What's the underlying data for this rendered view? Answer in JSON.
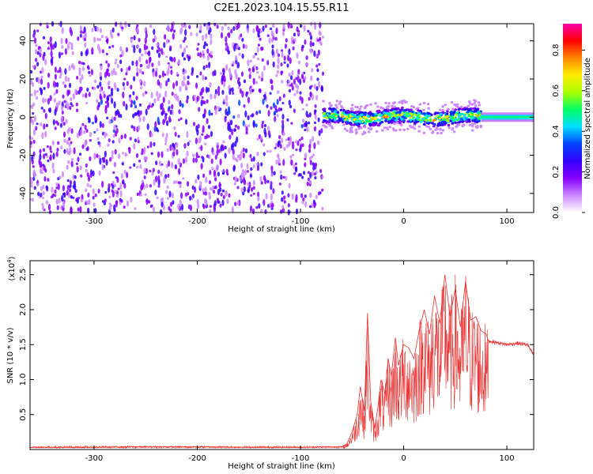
{
  "figure": {
    "title": "C2E1.2023.104.15.55.R11"
  },
  "chart_data": [
    {
      "type": "heatmap",
      "xlabel": "Height of straight line (km)",
      "ylabel": "Frequency (Hz)",
      "xlim": [
        -362,
        126
      ],
      "ylim": [
        -50,
        49
      ],
      "xticks": [
        -300,
        -200,
        -100,
        0,
        100
      ],
      "yticks": [
        -40,
        -20,
        0,
        20,
        40
      ],
      "colorbar": {
        "label": "Normalized spectral amplitude",
        "range": [
          0,
          0.93
        ],
        "ticks": [
          "0.0",
          "0.2",
          "0.4",
          "0.6",
          "0.8"
        ],
        "tick_values": [
          0.0,
          0.2,
          0.4,
          0.6,
          0.8
        ],
        "colormap": [
          "#ffffff",
          "#cc88ff",
          "#8800ff",
          "#3300ff",
          "#0044ff",
          "#00ddff",
          "#00ff66",
          "#aaff00",
          "#ffee00",
          "#ff8800",
          "#ff0000",
          "#ff00aa"
        ]
      },
      "regions": [
        {
          "x_range": [
            -362,
            -78
          ],
          "freq_range": [
            -50,
            49
          ],
          "amplitude": "low-scattered"
        },
        {
          "x_range": [
            -78,
            75
          ],
          "freq_range": [
            -8,
            8
          ],
          "amplitude": "high-band",
          "center_freq_hz": 0
        },
        {
          "x_range": [
            75,
            126
          ],
          "freq_range": [
            -2,
            2
          ],
          "amplitude": "medium-band",
          "center_freq_hz": 0
        }
      ]
    },
    {
      "type": "line",
      "xlabel": "Height of straight line (km)",
      "ylabel": "SNR (10 * v/v)",
      "y_scale_label": "(x10",
      "y_scale_exp": "4",
      "y_scale_close": ")",
      "xlim": [
        -362,
        126
      ],
      "ylim": [
        0,
        2.7
      ],
      "xticks": [
        -300,
        -200,
        -100,
        0,
        100
      ],
      "yticks": [
        "0.5",
        "1.0",
        "1.5",
        "2.0",
        "2.5"
      ],
      "ytick_values": [
        0.5,
        1.0,
        1.5,
        2.0,
        2.5
      ],
      "series": [
        {
          "color": "#e83030",
          "x": [
            -362,
            -300,
            -260,
            -200,
            -150,
            -100,
            -60,
            -55,
            -50,
            -45,
            -42,
            -38,
            -35,
            -32,
            -28,
            -25,
            -22,
            -18,
            -15,
            -12,
            -8,
            -5,
            0,
            5,
            10,
            15,
            20,
            25,
            30,
            35,
            40,
            45,
            50,
            55,
            60,
            65,
            70,
            75,
            80,
            82,
            90,
            100,
            110,
            120,
            126
          ],
          "y": [
            0.03,
            0.03,
            0.04,
            0.04,
            0.03,
            0.03,
            0.04,
            0.08,
            0.25,
            0.5,
            0.9,
            0.55,
            1.95,
            0.7,
            0.3,
            0.6,
            1.0,
            0.8,
            1.3,
            1.05,
            1.6,
            1.2,
            1.5,
            1.45,
            1.3,
            1.7,
            2.0,
            1.65,
            2.2,
            1.8,
            2.5,
            1.9,
            2.3,
            1.75,
            2.4,
            1.85,
            1.9,
            1.7,
            1.65,
            1.55,
            1.53,
            1.5,
            1.52,
            1.5,
            1.35
          ]
        }
      ]
    }
  ]
}
